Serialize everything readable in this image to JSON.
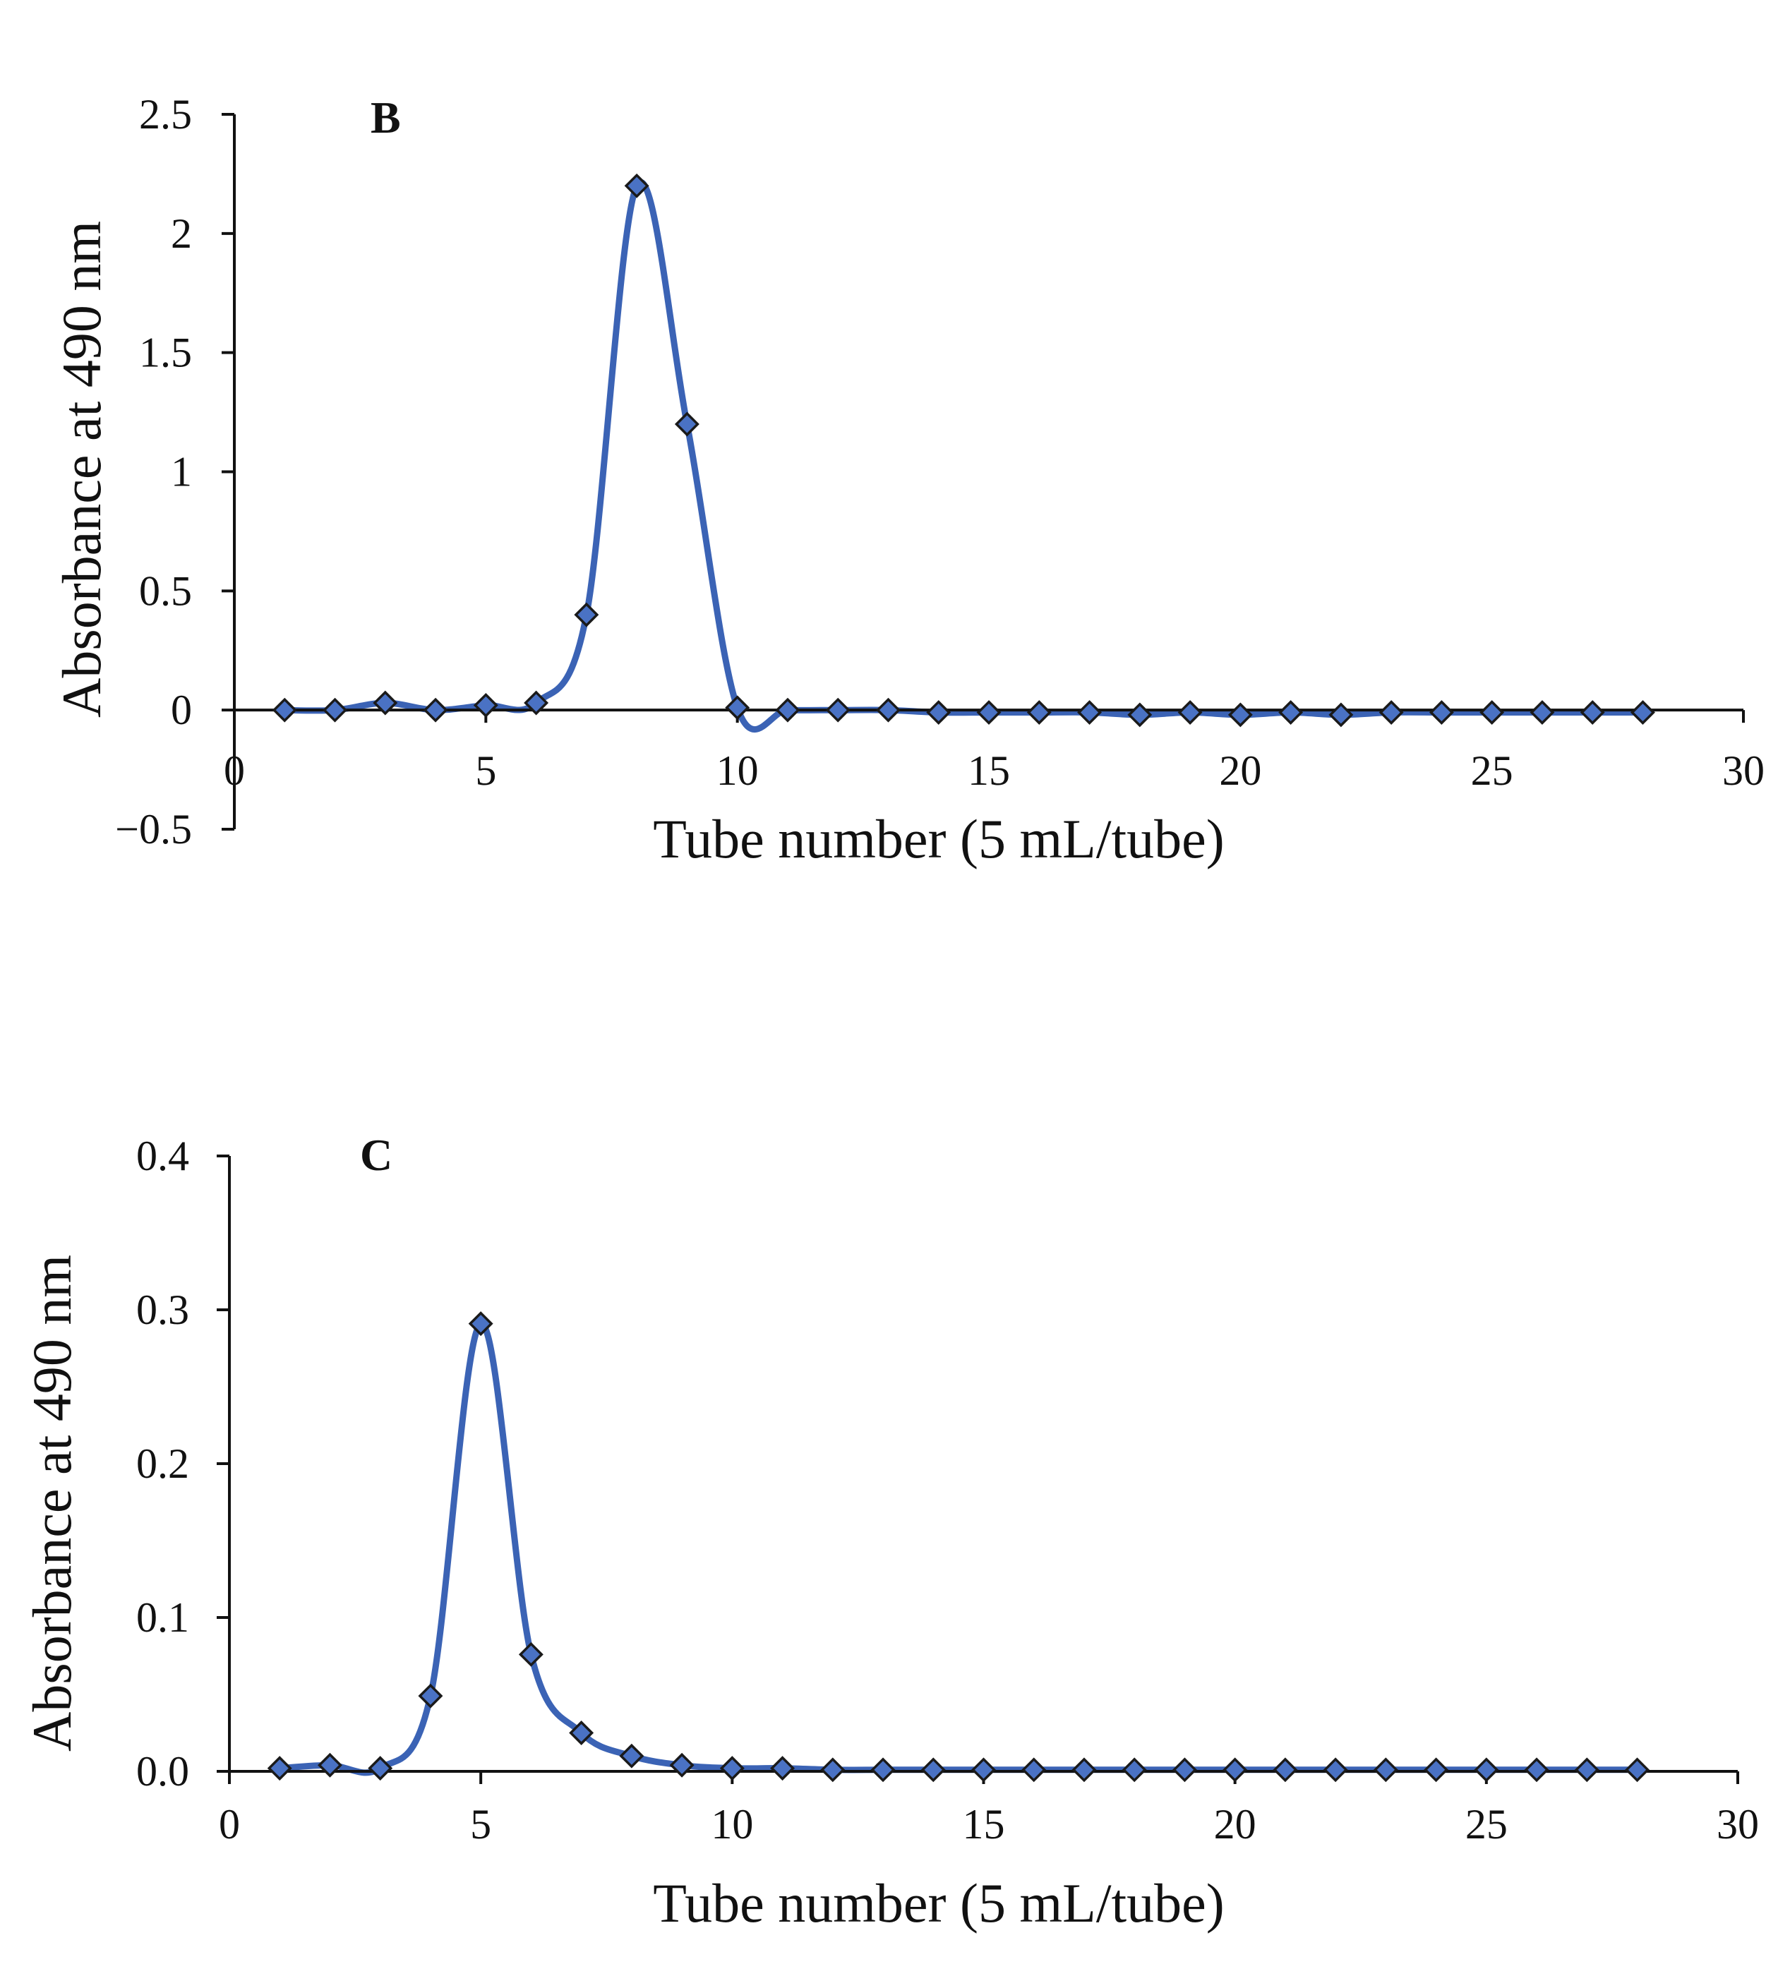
{
  "colors": {
    "series": "#3B63B5",
    "marker_fill": "#4A72C4",
    "marker_stroke": "#1a1a1a",
    "axis": "#111111"
  },
  "chart_data": [
    {
      "type": "line",
      "panel_label": "B",
      "title": "",
      "xlabel": "Tube number (5 mL/tube)",
      "ylabel": "Absorbance at 490 nm",
      "xlim": [
        0,
        30
      ],
      "ylim": [
        -0.5,
        2.5
      ],
      "xticks": [
        0,
        5,
        10,
        15,
        20,
        25,
        30
      ],
      "xtick_labels": [
        "0",
        "5",
        "10",
        "15",
        "20",
        "25",
        "30"
      ],
      "yticks": [
        -0.5,
        0,
        0.5,
        1,
        1.5,
        2,
        2.5
      ],
      "ytick_labels": [
        "−0.5",
        "0",
        "0.5",
        "1",
        "1.5",
        "2",
        "2.5"
      ],
      "grid": false,
      "legend": "none",
      "series": [
        {
          "name": "Absorbance",
          "smooth": true,
          "marker": "diamond",
          "x": [
            1,
            2,
            3,
            4,
            5,
            6,
            7,
            8,
            9,
            10,
            11,
            12,
            13,
            14,
            15,
            16,
            17,
            18,
            19,
            20,
            21,
            22,
            23,
            24,
            25,
            26,
            27,
            28
          ],
          "y": [
            0.0,
            0.0,
            0.03,
            0.0,
            0.02,
            0.03,
            0.4,
            2.2,
            1.2,
            0.01,
            0.0,
            0.0,
            0.0,
            -0.01,
            -0.01,
            -0.01,
            -0.01,
            -0.02,
            -0.01,
            -0.02,
            -0.01,
            -0.02,
            -0.01,
            -0.01,
            -0.01,
            -0.01,
            -0.01,
            -0.01
          ]
        }
      ]
    },
    {
      "type": "line",
      "panel_label": "C",
      "title": "",
      "xlabel": "Tube number (5 mL/tube)",
      "ylabel": "Absorbance at 490 nm",
      "xlim": [
        0,
        30
      ],
      "ylim": [
        0,
        0.4
      ],
      "xticks": [
        0,
        5,
        10,
        15,
        20,
        25,
        30
      ],
      "xtick_labels": [
        "0",
        "5",
        "10",
        "15",
        "20",
        "25",
        "30"
      ],
      "yticks": [
        0,
        0.1,
        0.2,
        0.3,
        0.4
      ],
      "ytick_labels": [
        "0.0",
        "0.1",
        "0.2",
        "0.3",
        "0.4"
      ],
      "grid": false,
      "legend": "none",
      "series": [
        {
          "name": "Absorbance",
          "smooth": true,
          "marker": "diamond",
          "x": [
            1,
            2,
            3,
            4,
            5,
            6,
            7,
            8,
            9,
            10,
            11,
            12,
            13,
            14,
            15,
            16,
            17,
            18,
            19,
            20,
            21,
            22,
            23,
            24,
            25,
            26,
            27,
            28
          ],
          "y": [
            0.002,
            0.004,
            0.002,
            0.049,
            0.291,
            0.076,
            0.025,
            0.01,
            0.004,
            0.002,
            0.002,
            0.001,
            0.001,
            0.001,
            0.001,
            0.001,
            0.001,
            0.001,
            0.001,
            0.001,
            0.001,
            0.001,
            0.001,
            0.001,
            0.001,
            0.001,
            0.001,
            0.001
          ]
        }
      ]
    }
  ]
}
